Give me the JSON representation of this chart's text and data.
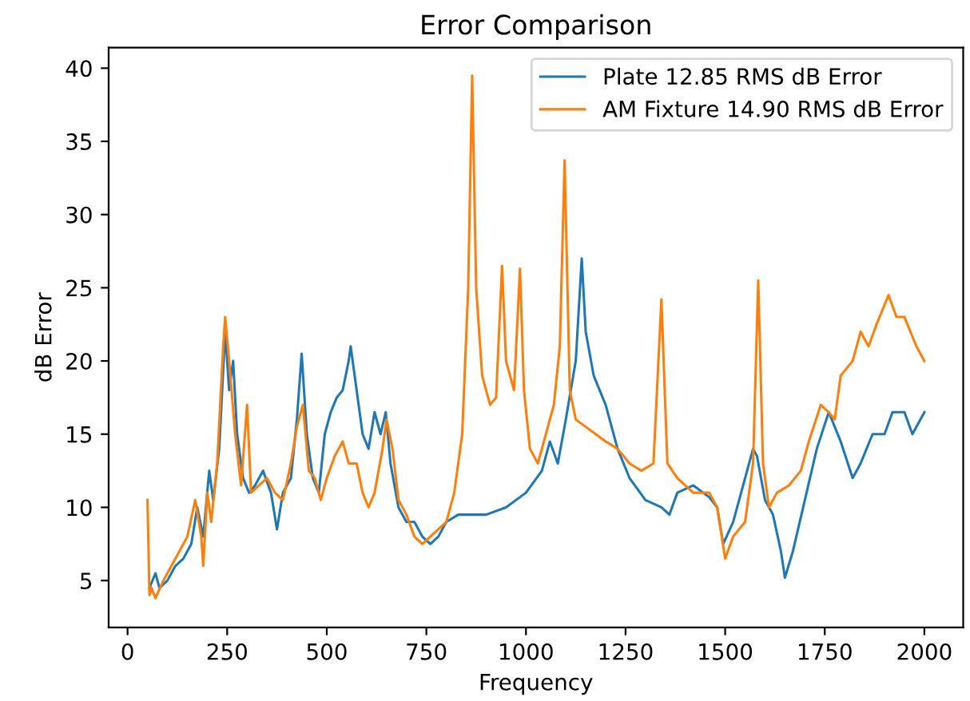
{
  "chart_data": {
    "type": "line",
    "title": "Error Comparison",
    "xlabel": "Frequency",
    "ylabel": "dB Error",
    "xlim": [
      -47.5,
      2097.5
    ],
    "xticks": [
      0,
      250,
      500,
      750,
      1000,
      1250,
      1500,
      1750,
      2000
    ],
    "ylim": [
      1.8,
      41.4
    ],
    "yticks": [
      5,
      10,
      15,
      20,
      25,
      30,
      35,
      40
    ],
    "grid": false,
    "legend": "top right",
    "line_style": "solid",
    "marker": "none",
    "series": [
      {
        "name": "Plate 12.85 RMS dB Error",
        "color": "#1f77b4",
        "x": [
          55,
          70,
          80,
          100,
          120,
          140,
          160,
          175,
          190,
          205,
          215,
          230,
          245,
          255,
          265,
          275,
          290,
          305,
          320,
          340,
          360,
          375,
          390,
          410,
          425,
          437,
          450,
          465,
          480,
          495,
          510,
          525,
          540,
          555,
          560,
          575,
          590,
          605,
          620,
          635,
          648,
          660,
          680,
          700,
          720,
          740,
          760,
          780,
          800,
          830,
          870,
          900,
          950,
          1000,
          1040,
          1060,
          1080,
          1100,
          1125,
          1140,
          1150,
          1170,
          1200,
          1230,
          1260,
          1300,
          1340,
          1360,
          1380,
          1420,
          1460,
          1480,
          1495,
          1520,
          1550,
          1570,
          1580,
          1600,
          1620,
          1640,
          1650,
          1670,
          1700,
          1730,
          1760,
          1790,
          1820,
          1840,
          1870,
          1900,
          1920,
          1950,
          1970,
          1990,
          2000
        ],
        "values": [
          4.5,
          5.5,
          4.5,
          5,
          6,
          6.5,
          7.5,
          10,
          8,
          12.5,
          10.5,
          14,
          22,
          18,
          20,
          15,
          12,
          11,
          11.5,
          12.5,
          11,
          8.5,
          11,
          12,
          16,
          20.5,
          15,
          12,
          11,
          15,
          16.5,
          17.5,
          18,
          20,
          21,
          18,
          15,
          14,
          16.5,
          15,
          16.5,
          13,
          10,
          9,
          9,
          8,
          7.5,
          8,
          9,
          9.5,
          9.5,
          9.5,
          10,
          11,
          12.5,
          14.5,
          13,
          16,
          20,
          27,
          22,
          19,
          17,
          14,
          12,
          10.5,
          10,
          9.5,
          11,
          11.5,
          10.7,
          10,
          7.5,
          9,
          12,
          14,
          13.5,
          10.5,
          9.5,
          7,
          5.2,
          7,
          10.5,
          14,
          16.5,
          14.5,
          12,
          13,
          15,
          15,
          16.5,
          16.5,
          15,
          16,
          16.5
        ]
      },
      {
        "name": "AM Fixture 14.90 RMS dB Error",
        "color": "#ff7f0e",
        "x": [
          50,
          55,
          60,
          70,
          90,
          110,
          130,
          150,
          170,
          185,
          190,
          200,
          210,
          225,
          240,
          245,
          255,
          270,
          285,
          300,
          310,
          330,
          350,
          370,
          390,
          410,
          425,
          440,
          455,
          470,
          485,
          500,
          520,
          540,
          555,
          575,
          590,
          605,
          620,
          640,
          650,
          665,
          680,
          700,
          720,
          740,
          760,
          780,
          800,
          820,
          840,
          855,
          865,
          875,
          890,
          910,
          925,
          940,
          950,
          970,
          985,
          995,
          1010,
          1030,
          1050,
          1070,
          1085,
          1097,
          1110,
          1125,
          1150,
          1175,
          1200,
          1230,
          1260,
          1290,
          1320,
          1340,
          1355,
          1380,
          1420,
          1460,
          1480,
          1500,
          1520,
          1550,
          1570,
          1583,
          1595,
          1610,
          1630,
          1660,
          1690,
          1710,
          1740,
          1760,
          1775,
          1790,
          1820,
          1840,
          1860,
          1880,
          1910,
          1930,
          1950,
          1980,
          2000
        ],
        "values": [
          10.5,
          4,
          4.5,
          3.8,
          5,
          6,
          7,
          8,
          10.5,
          8,
          6,
          11,
          9,
          13,
          21,
          23,
          20,
          15,
          11.5,
          17,
          11,
          11.5,
          12,
          11,
          10.5,
          13,
          15.5,
          17,
          12.5,
          12,
          10.5,
          12,
          13.5,
          14.5,
          13,
          13,
          11,
          10,
          11,
          14,
          16,
          14,
          10.5,
          9.5,
          8,
          7.5,
          8,
          8.5,
          9,
          11,
          15,
          25,
          39.5,
          25,
          19,
          17,
          17.5,
          26.5,
          20,
          18,
          26.3,
          18,
          14,
          13,
          15,
          17,
          21,
          33.7,
          18,
          16,
          15.5,
          15,
          14.5,
          14,
          13,
          12.5,
          13,
          24.2,
          13,
          12,
          11,
          11,
          10,
          6.5,
          8,
          9,
          13,
          25.5,
          13,
          10,
          11,
          11.5,
          12.5,
          14.5,
          17,
          16.5,
          16,
          19,
          20,
          22,
          21,
          22.5,
          24.5,
          23,
          23,
          21,
          20
        ]
      }
    ]
  }
}
